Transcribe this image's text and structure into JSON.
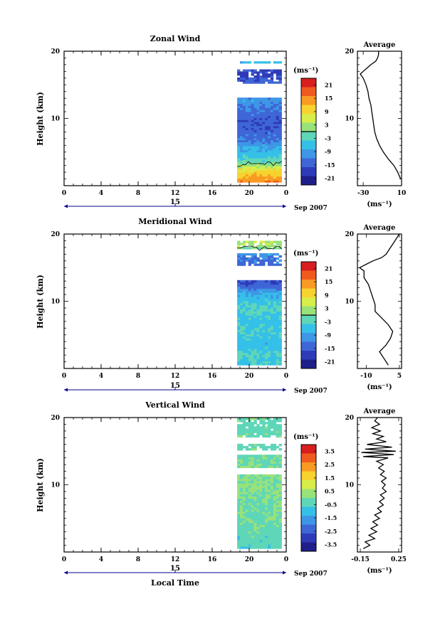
{
  "figure": {
    "date_label": "Sep 2007",
    "x_axis_label": "Local Time",
    "y_axis_label": "Height (km)"
  },
  "chart_data": [
    {
      "type": "heatmap",
      "title": "Zonal Wind",
      "ylabel": "Height (km)",
      "xlabel": "",
      "x_ticks": [
        "0",
        "4",
        "8",
        "12",
        "16",
        "20",
        "0"
      ],
      "x_range_hours": [
        0,
        24
      ],
      "day_label": "15",
      "y_ticks": [
        10,
        20
      ],
      "ylim": [
        0,
        20
      ],
      "data_extent_hours": [
        18.7,
        23.5
      ],
      "colorbar": {
        "unit": "(ms⁻¹)",
        "ticks": [
          "21",
          "15",
          "9",
          "3",
          "-3",
          "-9",
          "-15",
          "-21"
        ],
        "range": [
          -24,
          24
        ]
      },
      "contour_levels": [
        0
      ],
      "field_profile": [
        {
          "h": 0.5,
          "v": 15
        },
        {
          "h": 2,
          "v": 9
        },
        {
          "h": 3.5,
          "v": -2
        },
        {
          "h": 5,
          "v": -7
        },
        {
          "h": 7,
          "v": -13
        },
        {
          "h": 9,
          "v": -16
        },
        {
          "h": 11,
          "v": -13
        },
        {
          "h": 12.5,
          "v": -10
        },
        {
          "h": 15,
          "v": -14
        },
        {
          "h": 16.5,
          "v": -18
        },
        {
          "h": 17,
          "v": -16
        },
        {
          "h": 18.5,
          "v": -5
        }
      ],
      "gaps": [
        [
          13,
          15.2
        ],
        [
          17.3,
          18.2
        ]
      ],
      "average": {
        "title": "Average",
        "unit": "(ms⁻¹)",
        "x_ticks": [
          "-30",
          "10"
        ],
        "xlim": [
          -36,
          10
        ],
        "profile": [
          {
            "h": 1.0,
            "v": 9
          },
          {
            "h": 2,
            "v": 6
          },
          {
            "h": 3,
            "v": 2
          },
          {
            "h": 4,
            "v": -4
          },
          {
            "h": 5,
            "v": -9
          },
          {
            "h": 6,
            "v": -13
          },
          {
            "h": 7,
            "v": -16
          },
          {
            "h": 8,
            "v": -18
          },
          {
            "h": 9,
            "v": -19
          },
          {
            "h": 10,
            "v": -20
          },
          {
            "h": 11,
            "v": -21
          },
          {
            "h": 12,
            "v": -22
          },
          {
            "h": 13,
            "v": -24
          },
          {
            "h": 14,
            "v": -25
          },
          {
            "h": 15,
            "v": -27
          },
          {
            "h": 16,
            "v": -30
          },
          {
            "h": 16.6,
            "v": -33
          },
          {
            "h": 17,
            "v": -30
          },
          {
            "h": 17.5,
            "v": -26
          },
          {
            "h": 18,
            "v": -22
          },
          {
            "h": 18.5,
            "v": -17
          },
          {
            "h": 19,
            "v": -15
          },
          {
            "h": 19.5,
            "v": -14
          },
          {
            "h": 20,
            "v": -14
          }
        ]
      }
    },
    {
      "type": "heatmap",
      "title": "Meridional Wind",
      "ylabel": "Height (km)",
      "xlabel": "",
      "x_ticks": [
        "0",
        "4",
        "8",
        "12",
        "16",
        "20",
        "0"
      ],
      "x_range_hours": [
        0,
        24
      ],
      "day_label": "15",
      "y_ticks": [
        10,
        20
      ],
      "ylim": [
        0,
        20
      ],
      "data_extent_hours": [
        18.7,
        23.5
      ],
      "colorbar": {
        "unit": "(ms⁻¹)",
        "ticks": [
          "21",
          "15",
          "9",
          "3",
          "-3",
          "-9",
          "-15",
          "-21"
        ],
        "range": [
          -24,
          24
        ]
      },
      "contour_levels": [
        0
      ],
      "field_profile": [
        {
          "h": 0.5,
          "v": -5
        },
        {
          "h": 2,
          "v": -3
        },
        {
          "h": 3.5,
          "v": -7
        },
        {
          "h": 5,
          "v": -4
        },
        {
          "h": 7,
          "v": -6
        },
        {
          "h": 9,
          "v": -3
        },
        {
          "h": 11,
          "v": -8
        },
        {
          "h": 12.5,
          "v": -16
        },
        {
          "h": 15,
          "v": -14
        },
        {
          "h": 16.5,
          "v": -13
        },
        {
          "h": 18,
          "v": 2
        },
        {
          "h": 19,
          "v": 4
        }
      ],
      "gaps": [
        [
          13,
          15.3
        ],
        [
          16.9,
          17.5
        ]
      ],
      "average": {
        "title": "Average",
        "unit": "(ms⁻¹)",
        "x_ticks": [
          "-10",
          "5"
        ],
        "xlim": [
          -14,
          6
        ],
        "profile": [
          {
            "h": 0.5,
            "v": 0
          },
          {
            "h": 1.5,
            "v": -2
          },
          {
            "h": 2.5,
            "v": -4
          },
          {
            "h": 3.5,
            "v": -1
          },
          {
            "h": 4.5,
            "v": 1
          },
          {
            "h": 5.5,
            "v": 2
          },
          {
            "h": 6.5,
            "v": 0
          },
          {
            "h": 7.5,
            "v": -3
          },
          {
            "h": 8.5,
            "v": -6
          },
          {
            "h": 9.5,
            "v": -6
          },
          {
            "h": 10.5,
            "v": -7
          },
          {
            "h": 11.5,
            "v": -8
          },
          {
            "h": 12.5,
            "v": -9
          },
          {
            "h": 13.5,
            "v": -11
          },
          {
            "h": 14.5,
            "v": -11
          },
          {
            "h": 15,
            "v": -13
          },
          {
            "h": 15.5,
            "v": -10
          },
          {
            "h": 16,
            "v": -7
          },
          {
            "h": 16.5,
            "v": -3
          },
          {
            "h": 17,
            "v": -1
          },
          {
            "h": 18,
            "v": 1
          },
          {
            "h": 19,
            "v": 3
          },
          {
            "h": 20,
            "v": 5
          }
        ]
      }
    },
    {
      "type": "heatmap",
      "title": "Vertical Wind",
      "ylabel": "Height (km)",
      "xlabel": "Local Time",
      "x_ticks": [
        "0",
        "4",
        "8",
        "12",
        "16",
        "20",
        "0"
      ],
      "x_range_hours": [
        0,
        24
      ],
      "day_label": "15",
      "y_ticks": [
        10,
        20
      ],
      "ylim": [
        0,
        20
      ],
      "data_extent_hours": [
        18.7,
        23.5
      ],
      "colorbar": {
        "unit": "(ms⁻¹)",
        "ticks": [
          "3.5",
          "2.5",
          "1.5",
          "0.5",
          "-0.5",
          "-1.5",
          "-2.5",
          "-3.5"
        ],
        "range": [
          -4,
          4
        ]
      },
      "contour_levels": [],
      "field_profile": [
        {
          "h": 0.5,
          "v": -0.4
        },
        {
          "h": 5,
          "v": -0.2
        },
        {
          "h": 10,
          "v": 0.1
        },
        {
          "h": 15,
          "v": -0.3
        },
        {
          "h": 20,
          "v": -0.3
        }
      ],
      "gaps": [
        [
          11.5,
          12.3
        ],
        [
          14.2,
          15.0
        ],
        [
          16.0,
          16.8
        ]
      ],
      "average": {
        "title": "Average",
        "unit": "(ms⁻¹)",
        "x_ticks": [
          "-0.15",
          "0.25"
        ],
        "xlim": [
          -0.18,
          0.28
        ],
        "profile": [
          {
            "h": 0.5,
            "v": -0.12
          },
          {
            "h": 1,
            "v": -0.05
          },
          {
            "h": 1.5,
            "v": -0.1
          },
          {
            "h": 2,
            "v": 0.0
          },
          {
            "h": 2.5,
            "v": -0.06
          },
          {
            "h": 3,
            "v": 0.02
          },
          {
            "h": 3.5,
            "v": -0.04
          },
          {
            "h": 4,
            "v": 0.03
          },
          {
            "h": 4.5,
            "v": -0.02
          },
          {
            "h": 5,
            "v": 0.05
          },
          {
            "h": 5.5,
            "v": 0.0
          },
          {
            "h": 6,
            "v": 0.07
          },
          {
            "h": 6.5,
            "v": 0.03
          },
          {
            "h": 7,
            "v": 0.09
          },
          {
            "h": 7.5,
            "v": 0.05
          },
          {
            "h": 8,
            "v": 0.1
          },
          {
            "h": 8.5,
            "v": 0.06
          },
          {
            "h": 9,
            "v": 0.12
          },
          {
            "h": 9.5,
            "v": 0.08
          },
          {
            "h": 10,
            "v": 0.11
          },
          {
            "h": 10.5,
            "v": 0.07
          },
          {
            "h": 11,
            "v": 0.12
          },
          {
            "h": 11.5,
            "v": 0.06
          },
          {
            "h": 12,
            "v": 0.1
          },
          {
            "h": 12.5,
            "v": 0.04
          },
          {
            "h": 13,
            "v": 0.09
          },
          {
            "h": 13.5,
            "v": 0.02
          },
          {
            "h": 14,
            "v": 0.14
          },
          {
            "h": 14.2,
            "v": -0.12
          },
          {
            "h": 14.5,
            "v": 0.2
          },
          {
            "h": 14.8,
            "v": -0.14
          },
          {
            "h": 15,
            "v": 0.22
          },
          {
            "h": 15.3,
            "v": -0.1
          },
          {
            "h": 15.6,
            "v": 0.18
          },
          {
            "h": 16,
            "v": -0.08
          },
          {
            "h": 16.4,
            "v": 0.12
          },
          {
            "h": 16.8,
            "v": 0.02
          },
          {
            "h": 17.2,
            "v": 0.09
          },
          {
            "h": 17.6,
            "v": -0.02
          },
          {
            "h": 18,
            "v": 0.06
          },
          {
            "h": 18.5,
            "v": -0.03
          },
          {
            "h": 19,
            "v": 0.05
          },
          {
            "h": 19.5,
            "v": 0.0
          },
          {
            "h": 20,
            "v": 0.03
          }
        ]
      }
    }
  ]
}
